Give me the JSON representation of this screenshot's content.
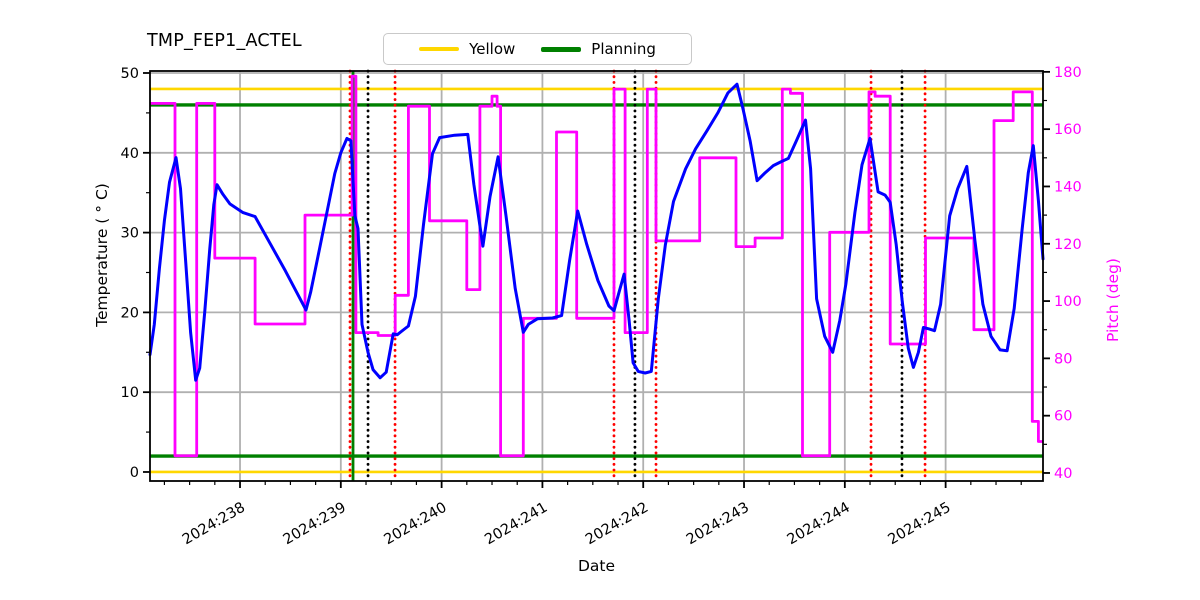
{
  "figure": {
    "title": "TMP_FEP1_ACTEL",
    "x_axis_label": "Date",
    "y_axis_label_left": "Temperature ( ° C)",
    "y_axis_label_right": "Pitch (deg)"
  },
  "legend": {
    "items": [
      {
        "label": "Yellow",
        "color": "#ffd700",
        "thickness": 3.5
      },
      {
        "label": "Planning",
        "color": "#008000",
        "thickness": 5
      }
    ]
  },
  "colors": {
    "temperature_line": "#0000ff",
    "pitch_line": "#ff00ff",
    "yellow_limit": "#ffd700",
    "planning_limit": "#008000",
    "red_event": "#ff0000",
    "black_event": "#000000",
    "green_event": "#008000",
    "grid": "#b0b0b0",
    "spine": "#000000",
    "right_axis_text": "#ff00ff",
    "left_axis_text": "#000000"
  },
  "chart_data": {
    "type": "line",
    "title": "TMP_FEP1_ACTEL",
    "xlabel": "Date",
    "ylabel_left": "Temperature ( ° C)",
    "ylabel_right": "Pitch (deg)",
    "grid": true,
    "legend_position": "top-center-outside",
    "xlim": [
      237.107,
      245.966
    ],
    "ylim_left": [
      -1.13,
      50.25
    ],
    "ylim_right": [
      37.2,
      180.3
    ],
    "x_major_ticks": [
      238,
      239,
      240,
      241,
      242,
      243,
      244,
      245
    ],
    "x_tick_labels": [
      "2024:238",
      "2024:239",
      "2024:240",
      "2024:241",
      "2024:242",
      "2024:243",
      "2024:244",
      "2024:245"
    ],
    "x_minor_tick_step": 0.25,
    "y_left_ticks": [
      0,
      10,
      20,
      30,
      40,
      50
    ],
    "y_left_minor_ticks": [
      5,
      15,
      25,
      35,
      45
    ],
    "y_right_ticks": [
      40,
      60,
      80,
      100,
      120,
      140,
      160,
      180
    ],
    "y_right_minor_ticks": [
      50,
      70,
      90,
      110,
      130,
      150,
      170
    ],
    "series": [
      {
        "name": "Temperature",
        "axis": "left",
        "style": "line",
        "color": "#0000ff",
        "x": [
          237.107,
          237.15,
          237.2,
          237.25,
          237.3,
          237.365,
          237.41,
          237.46,
          237.51,
          237.56,
          237.6,
          237.65,
          237.7,
          237.74,
          237.772,
          237.83,
          237.9,
          238.03,
          238.15,
          238.3,
          238.45,
          238.575,
          238.655,
          238.7,
          238.79,
          238.94,
          239.0,
          239.06,
          239.1,
          239.14,
          239.17,
          239.21,
          239.27,
          239.32,
          239.39,
          239.45,
          239.52,
          239.56,
          239.6,
          239.67,
          239.74,
          239.82,
          239.91,
          239.98,
          240.13,
          240.26,
          240.32,
          240.41,
          240.48,
          240.56,
          240.64,
          240.73,
          240.81,
          240.86,
          240.95,
          241.1,
          241.19,
          241.27,
          241.35,
          241.44,
          241.55,
          241.66,
          241.71,
          241.76,
          241.81,
          241.86,
          241.9,
          241.95,
          242.02,
          242.08,
          242.15,
          242.22,
          242.3,
          242.42,
          242.52,
          242.63,
          242.74,
          242.84,
          242.93,
          242.99,
          243.06,
          243.13,
          243.21,
          243.29,
          243.37,
          243.44,
          243.52,
          243.61,
          243.66,
          243.72,
          243.8,
          243.88,
          243.95,
          244.01,
          244.1,
          244.17,
          244.25,
          244.33,
          244.4,
          244.45,
          244.51,
          244.57,
          244.63,
          244.68,
          244.73,
          244.78,
          244.84,
          244.89,
          244.95,
          245.04,
          245.12,
          245.21,
          245.29,
          245.37,
          245.45,
          245.54,
          245.61,
          245.68,
          245.76,
          245.82,
          245.87,
          245.92,
          245.966
        ],
        "y": [
          14.7,
          18.5,
          25.5,
          31.5,
          36.3,
          39.4,
          35.5,
          26.5,
          17.5,
          11.5,
          13.0,
          20.0,
          28.0,
          33.5,
          36.0,
          34.8,
          33.6,
          32.5,
          32.0,
          28.6,
          25.2,
          22.2,
          20.3,
          22.5,
          28.0,
          37.4,
          40.0,
          41.8,
          41.5,
          32.1,
          30.5,
          18.5,
          15.0,
          12.8,
          11.8,
          12.5,
          17.3,
          17.2,
          17.6,
          18.3,
          22.0,
          31.0,
          39.9,
          41.9,
          42.2,
          42.3,
          36.0,
          28.3,
          34.5,
          39.5,
          32.0,
          23.0,
          17.5,
          18.5,
          19.2,
          19.3,
          19.6,
          26.5,
          32.7,
          28.5,
          24.0,
          20.8,
          20.2,
          22.5,
          24.8,
          19.0,
          13.7,
          12.6,
          12.4,
          12.6,
          21.7,
          28.5,
          33.9,
          38.0,
          40.5,
          42.7,
          45.0,
          47.5,
          48.6,
          45.5,
          41.5,
          36.5,
          37.5,
          38.4,
          38.9,
          39.3,
          41.5,
          44.1,
          38.0,
          21.7,
          17.0,
          15.0,
          19.0,
          23.5,
          32.5,
          38.5,
          41.8,
          35.1,
          34.7,
          33.8,
          28.5,
          21.3,
          15.5,
          13.1,
          15.0,
          18.1,
          17.9,
          17.7,
          21.0,
          32.1,
          35.5,
          38.3,
          29.0,
          21.0,
          17.0,
          15.3,
          15.2,
          20.5,
          30.5,
          37.5,
          40.9,
          34.0,
          26.7
        ]
      },
      {
        "name": "Pitch",
        "axis": "right",
        "style": "step",
        "color": "#ff00ff",
        "steps": [
          [
            237.107,
            169
          ],
          [
            237.355,
            46
          ],
          [
            237.57,
            169
          ],
          [
            237.75,
            115
          ],
          [
            238.15,
            92
          ],
          [
            238.645,
            130
          ],
          [
            239.112,
            178.5
          ],
          [
            239.15,
            89
          ],
          [
            239.37,
            88
          ],
          [
            239.54,
            102
          ],
          [
            239.67,
            168
          ],
          [
            239.88,
            128
          ],
          [
            240.25,
            104
          ],
          [
            240.38,
            168
          ],
          [
            240.5,
            171.5
          ],
          [
            240.55,
            168
          ],
          [
            240.585,
            46
          ],
          [
            240.81,
            94
          ],
          [
            241.14,
            159
          ],
          [
            241.34,
            94
          ],
          [
            241.71,
            174
          ],
          [
            241.82,
            89
          ],
          [
            242.04,
            174
          ],
          [
            242.127,
            121
          ],
          [
            242.56,
            150
          ],
          [
            242.92,
            119
          ],
          [
            243.11,
            122
          ],
          [
            243.38,
            174
          ],
          [
            243.46,
            172.5
          ],
          [
            243.58,
            46
          ],
          [
            243.85,
            124
          ],
          [
            244.24,
            173
          ],
          [
            244.3,
            171.5
          ],
          [
            244.45,
            85
          ],
          [
            244.8,
            122
          ],
          [
            245.28,
            90
          ],
          [
            245.48,
            163
          ],
          [
            245.67,
            173
          ],
          [
            245.86,
            58
          ],
          [
            245.92,
            51
          ]
        ],
        "x_end": 245.966
      }
    ],
    "limit_lines": [
      {
        "name": "Yellow",
        "axis": "left",
        "value": 48,
        "color": "#ffd700",
        "width": 2.6
      },
      {
        "name": "Yellow",
        "axis": "left",
        "value": 0,
        "color": "#ffd700",
        "width": 2.6
      },
      {
        "name": "Planning",
        "axis": "left",
        "value": 46,
        "color": "#008000",
        "width": 3.4
      },
      {
        "name": "Planning",
        "axis": "left",
        "value": 2,
        "color": "#008000",
        "width": 3.4
      }
    ],
    "event_lines": [
      {
        "x": 239.091,
        "style": "dotted",
        "color": "#ff0000"
      },
      {
        "x": 239.121,
        "style": "solid",
        "color": "#008000"
      },
      {
        "x": 239.27,
        "style": "dotted",
        "color": "#000000"
      },
      {
        "x": 239.538,
        "style": "dotted",
        "color": "#ff0000"
      },
      {
        "x": 241.71,
        "style": "dotted",
        "color": "#ff0000"
      },
      {
        "x": 241.918,
        "style": "dotted",
        "color": "#000000"
      },
      {
        "x": 242.127,
        "style": "dotted",
        "color": "#ff0000"
      },
      {
        "x": 244.26,
        "style": "dotted",
        "color": "#ff0000"
      },
      {
        "x": 244.567,
        "style": "dotted",
        "color": "#000000"
      },
      {
        "x": 244.796,
        "style": "dotted",
        "color": "#ff0000"
      }
    ]
  }
}
